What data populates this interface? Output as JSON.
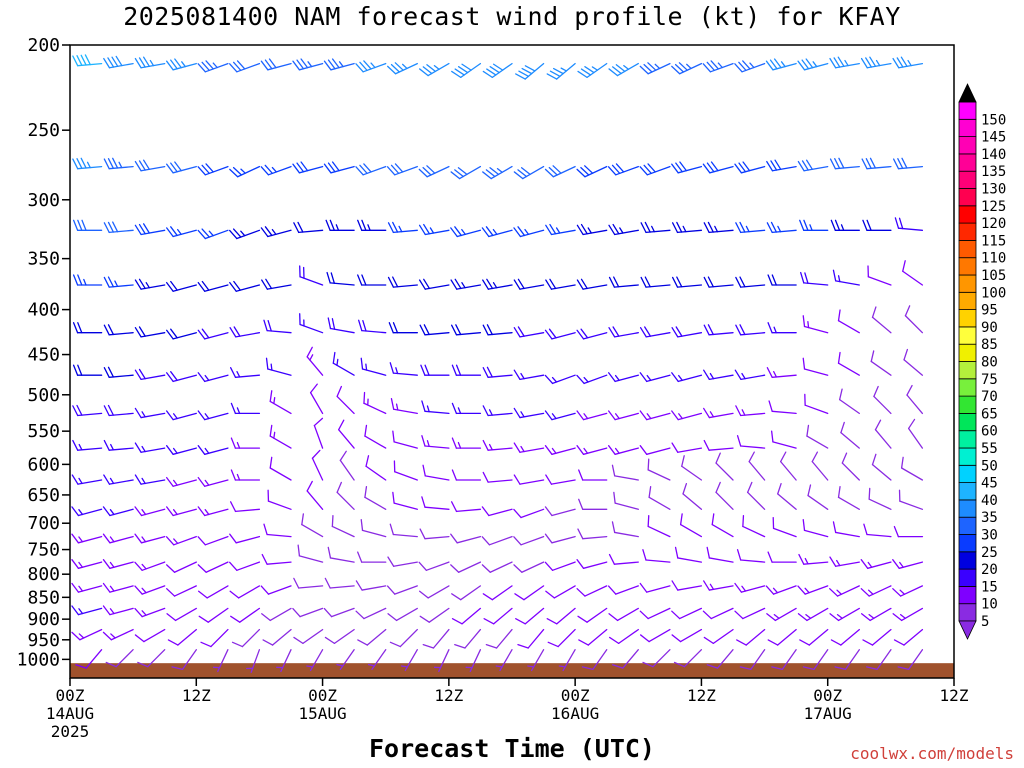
{
  "chart_data": {
    "type": "wind_barb_profile",
    "title": "2025081400 NAM forecast wind profile (kt) for KFAY",
    "xlabel": "Forecast Time (UTC)",
    "units": "kt",
    "credit": "coolwx.com/models",
    "y_axis": {
      "scale": "log-pressure",
      "inverted": true,
      "ylim": [
        1050,
        200
      ],
      "ticks": [
        200,
        250,
        300,
        350,
        400,
        450,
        500,
        550,
        600,
        650,
        700,
        750,
        800,
        850,
        900,
        950,
        1000
      ]
    },
    "x_axis": {
      "xlim_hours": [
        0,
        84
      ],
      "ticks": [
        {
          "hour": 0,
          "lines": [
            "00Z",
            "14AUG",
            "2025"
          ]
        },
        {
          "hour": 12,
          "lines": [
            "12Z"
          ]
        },
        {
          "hour": 24,
          "lines": [
            "00Z",
            "15AUG"
          ]
        },
        {
          "hour": 36,
          "lines": [
            "12Z"
          ]
        },
        {
          "hour": 48,
          "lines": [
            "00Z",
            "16AUG"
          ]
        },
        {
          "hour": 60,
          "lines": [
            "12Z"
          ]
        },
        {
          "hour": 72,
          "lines": [
            "00Z",
            "17AUG"
          ]
        },
        {
          "hour": 84,
          "lines": [
            "12Z"
          ]
        }
      ]
    },
    "colorbar": {
      "levels": [
        5,
        10,
        15,
        20,
        25,
        30,
        35,
        40,
        45,
        50,
        55,
        60,
        65,
        70,
        75,
        80,
        85,
        90,
        95,
        100,
        105,
        110,
        115,
        120,
        125,
        130,
        135,
        140,
        145,
        150
      ],
      "colors": [
        "#8a2be2",
        "#7f00ff",
        "#3a00ff",
        "#0000e0",
        "#0a3cff",
        "#1e64ff",
        "#1e8cff",
        "#1eb4ff",
        "#00d2ff",
        "#00f0d2",
        "#00f0a0",
        "#00e65a",
        "#32e632",
        "#78f03c",
        "#b4f03c",
        "#f0f000",
        "#ffff3c",
        "#ffd200",
        "#ffaa00",
        "#ff9600",
        "#ff7800",
        "#ff5a00",
        "#ff2800",
        "#ff0000",
        "#ff0050",
        "#ff0078",
        "#ff0096",
        "#ff00b4",
        "#ff00d2",
        "#ff00ff"
      ],
      "extend_low_color": "#8a2be2",
      "extend_high_color": "#000000"
    },
    "terrain": {
      "surface_pressure": 1010,
      "color": "#a0522d"
    },
    "hours": [
      0,
      3,
      6,
      9,
      12,
      15,
      18,
      21,
      24,
      27,
      30,
      33,
      36,
      39,
      42,
      45,
      48,
      51,
      54,
      57,
      60,
      63,
      66,
      69,
      72,
      75,
      78,
      81,
      84
    ],
    "levels": [
      1000,
      975,
      950,
      925,
      900,
      875,
      850,
      825,
      800,
      775,
      750,
      725,
      700,
      675,
      650,
      625,
      600,
      575,
      550,
      525,
      500,
      475,
      450,
      425,
      400,
      375,
      350,
      325,
      300,
      275,
      250,
      225,
      210
    ],
    "profiles": [
      {
        "p": 210,
        "dir": [
          265,
          265,
          260,
          260,
          255,
          250,
          250,
          255,
          255,
          255,
          250,
          245,
          240,
          235,
          235,
          230,
          230,
          235,
          240,
          245,
          245,
          250,
          250,
          255,
          255,
          260,
          260,
          260,
          265
        ],
        "spd": [
          40,
          40,
          38,
          37,
          35,
          33,
          32,
          32,
          33,
          34,
          35,
          36,
          37,
          38,
          39,
          38,
          36,
          35,
          35,
          34,
          34,
          34,
          34,
          35,
          35,
          36,
          36,
          37,
          37
        ]
      },
      {
        "p": 275,
        "dir": [
          265,
          265,
          265,
          260,
          255,
          250,
          245,
          250,
          255,
          255,
          250,
          250,
          245,
          240,
          240,
          240,
          245,
          245,
          250,
          250,
          255,
          255,
          255,
          260,
          260,
          265,
          265,
          265,
          270
        ],
        "spd": [
          35,
          35,
          33,
          32,
          30,
          28,
          27,
          27,
          28,
          29,
          30,
          30,
          31,
          32,
          33,
          32,
          30,
          29,
          29,
          28,
          28,
          28,
          29,
          29,
          30,
          30,
          31,
          31,
          30
        ]
      },
      {
        "p": 325,
        "dir": [
          270,
          270,
          265,
          260,
          255,
          250,
          250,
          255,
          265,
          270,
          270,
          265,
          260,
          255,
          255,
          255,
          260,
          260,
          260,
          265,
          265,
          265,
          265,
          265,
          270,
          270,
          270,
          275,
          285
        ],
        "spd": [
          30,
          30,
          30,
          28,
          27,
          25,
          24,
          23,
          22,
          23,
          24,
          25,
          26,
          27,
          27,
          26,
          25,
          24,
          24,
          24,
          24,
          24,
          25,
          25,
          25,
          24,
          22,
          18,
          14
        ]
      },
      {
        "p": 375,
        "dir": [
          270,
          270,
          265,
          260,
          255,
          255,
          255,
          260,
          290,
          275,
          270,
          265,
          260,
          260,
          260,
          260,
          260,
          260,
          265,
          265,
          265,
          265,
          265,
          270,
          275,
          280,
          290,
          305,
          315
        ],
        "spd": [
          25,
          25,
          25,
          24,
          22,
          20,
          20,
          20,
          18,
          20,
          22,
          22,
          22,
          23,
          23,
          22,
          21,
          20,
          20,
          20,
          20,
          20,
          20,
          20,
          18,
          15,
          12,
          10,
          9
        ]
      },
      {
        "p": 425,
        "dir": [
          270,
          270,
          265,
          260,
          255,
          255,
          260,
          275,
          290,
          280,
          275,
          270,
          265,
          265,
          265,
          260,
          255,
          255,
          260,
          260,
          260,
          265,
          265,
          270,
          285,
          300,
          310,
          315,
          320
        ],
        "spd": [
          22,
          22,
          22,
          21,
          20,
          19,
          18,
          18,
          17,
          18,
          19,
          20,
          20,
          20,
          20,
          19,
          18,
          18,
          18,
          18,
          18,
          18,
          18,
          17,
          14,
          11,
          9,
          8,
          8
        ]
      },
      {
        "p": 475,
        "dir": [
          270,
          270,
          265,
          260,
          255,
          255,
          265,
          285,
          320,
          300,
          285,
          275,
          270,
          270,
          265,
          260,
          250,
          250,
          255,
          255,
          255,
          260,
          260,
          265,
          285,
          300,
          305,
          310,
          315
        ],
        "spd": [
          20,
          20,
          20,
          19,
          18,
          17,
          16,
          15,
          14,
          15,
          16,
          17,
          18,
          18,
          18,
          17,
          16,
          16,
          16,
          16,
          16,
          16,
          15,
          14,
          12,
          10,
          9,
          8,
          8
        ]
      },
      {
        "p": 525,
        "dir": [
          265,
          265,
          265,
          260,
          255,
          255,
          270,
          300,
          330,
          315,
          295,
          280,
          275,
          270,
          265,
          260,
          255,
          255,
          255,
          255,
          255,
          260,
          265,
          275,
          290,
          305,
          315,
          320,
          325
        ],
        "spd": [
          18,
          18,
          18,
          17,
          16,
          16,
          15,
          14,
          12,
          12,
          13,
          14,
          15,
          15,
          15,
          15,
          15,
          14,
          14,
          14,
          14,
          14,
          13,
          12,
          10,
          9,
          8,
          8,
          8
        ]
      },
      {
        "p": 575,
        "dir": [
          265,
          265,
          265,
          260,
          255,
          255,
          270,
          300,
          340,
          320,
          300,
          285,
          275,
          270,
          265,
          260,
          255,
          255,
          255,
          255,
          260,
          265,
          275,
          285,
          300,
          310,
          320,
          325,
          330
        ],
        "spd": [
          17,
          17,
          17,
          16,
          15,
          15,
          14,
          13,
          11,
          10,
          11,
          12,
          13,
          13,
          13,
          13,
          13,
          13,
          13,
          12,
          12,
          12,
          11,
          10,
          9,
          8,
          8,
          8,
          8
        ]
      },
      {
        "p": 625,
        "dir": [
          260,
          260,
          260,
          260,
          255,
          255,
          270,
          300,
          335,
          325,
          305,
          290,
          280,
          270,
          265,
          260,
          260,
          270,
          280,
          295,
          305,
          315,
          320,
          320,
          320,
          315,
          310,
          300,
          290
        ],
        "spd": [
          16,
          16,
          16,
          15,
          14,
          14,
          13,
          12,
          10,
          9,
          10,
          11,
          12,
          12,
          12,
          12,
          11,
          10,
          9,
          9,
          9,
          9,
          8,
          8,
          8,
          8,
          8,
          8,
          8
        ]
      },
      {
        "p": 675,
        "dir": [
          255,
          255,
          255,
          255,
          255,
          255,
          265,
          290,
          320,
          315,
          300,
          285,
          275,
          265,
          255,
          250,
          255,
          270,
          285,
          300,
          310,
          315,
          315,
          310,
          305,
          300,
          295,
          290,
          285
        ],
        "spd": [
          15,
          15,
          15,
          14,
          14,
          13,
          12,
          11,
          10,
          9,
          9,
          10,
          10,
          10,
          10,
          10,
          9,
          9,
          9,
          9,
          9,
          9,
          9,
          9,
          9,
          9,
          9,
          9,
          9
        ]
      },
      {
        "p": 725,
        "dir": [
          255,
          255,
          255,
          255,
          250,
          250,
          255,
          275,
          300,
          295,
          285,
          275,
          265,
          255,
          250,
          250,
          255,
          265,
          280,
          295,
          300,
          300,
          295,
          290,
          285,
          280,
          275,
          270,
          265
        ],
        "spd": [
          14,
          14,
          14,
          13,
          13,
          12,
          11,
          10,
          9,
          9,
          9,
          9,
          9,
          9,
          9,
          9,
          9,
          9,
          9,
          10,
          10,
          10,
          10,
          11,
          11,
          11,
          11,
          11,
          11
        ]
      },
      {
        "p": 775,
        "dir": [
          255,
          255,
          255,
          250,
          245,
          245,
          250,
          265,
          285,
          280,
          270,
          260,
          250,
          245,
          245,
          245,
          250,
          255,
          265,
          275,
          280,
          280,
          275,
          270,
          265,
          260,
          255,
          255,
          255
        ],
        "spd": [
          14,
          14,
          13,
          13,
          12,
          12,
          11,
          10,
          9,
          9,
          9,
          9,
          9,
          9,
          9,
          9,
          10,
          10,
          10,
          11,
          11,
          12,
          12,
          12,
          13,
          13,
          13,
          13,
          13
        ]
      },
      {
        "p": 825,
        "dir": [
          255,
          255,
          255,
          250,
          245,
          240,
          240,
          250,
          265,
          265,
          260,
          250,
          240,
          235,
          235,
          235,
          240,
          245,
          250,
          255,
          260,
          260,
          255,
          250,
          250,
          245,
          245,
          245,
          245
        ],
        "spd": [
          14,
          14,
          13,
          13,
          12,
          11,
          11,
          10,
          9,
          9,
          9,
          9,
          9,
          9,
          10,
          10,
          10,
          11,
          11,
          12,
          12,
          13,
          13,
          13,
          14,
          14,
          14,
          14,
          14
        ]
      },
      {
        "p": 875,
        "dir": [
          255,
          255,
          255,
          250,
          240,
          235,
          235,
          240,
          250,
          250,
          245,
          240,
          235,
          230,
          230,
          230,
          230,
          235,
          240,
          245,
          245,
          245,
          245,
          240,
          240,
          240,
          240,
          240,
          240
        ],
        "spd": [
          15,
          15,
          14,
          13,
          12,
          11,
          10,
          9,
          9,
          9,
          9,
          9,
          9,
          10,
          10,
          10,
          10,
          11,
          11,
          12,
          12,
          12,
          12,
          13,
          13,
          13,
          13,
          13,
          13
        ]
      },
      {
        "p": 925,
        "dir": [
          245,
          245,
          245,
          240,
          230,
          225,
          225,
          230,
          235,
          235,
          230,
          225,
          220,
          220,
          220,
          220,
          225,
          230,
          235,
          240,
          240,
          235,
          230,
          230,
          230,
          230,
          230,
          230,
          230
        ],
        "spd": [
          15,
          14,
          13,
          12,
          11,
          10,
          9,
          8,
          8,
          8,
          8,
          8,
          9,
          9,
          9,
          10,
          10,
          10,
          11,
          11,
          11,
          11,
          12,
          12,
          12,
          12,
          12,
          12,
          12
        ]
      },
      {
        "p": 975,
        "dir": [
          220,
          220,
          225,
          225,
          215,
          205,
          200,
          205,
          210,
          215,
          215,
          210,
          205,
          205,
          210,
          210,
          210,
          215,
          220,
          225,
          225,
          220,
          215,
          215,
          215,
          215,
          215,
          215,
          215
        ],
        "spd": [
          10,
          10,
          9,
          9,
          8,
          7,
          6,
          6,
          6,
          6,
          6,
          6,
          6,
          7,
          7,
          7,
          7,
          8,
          8,
          8,
          8,
          8,
          8,
          8,
          8,
          8,
          8,
          8,
          8
        ]
      }
    ]
  }
}
